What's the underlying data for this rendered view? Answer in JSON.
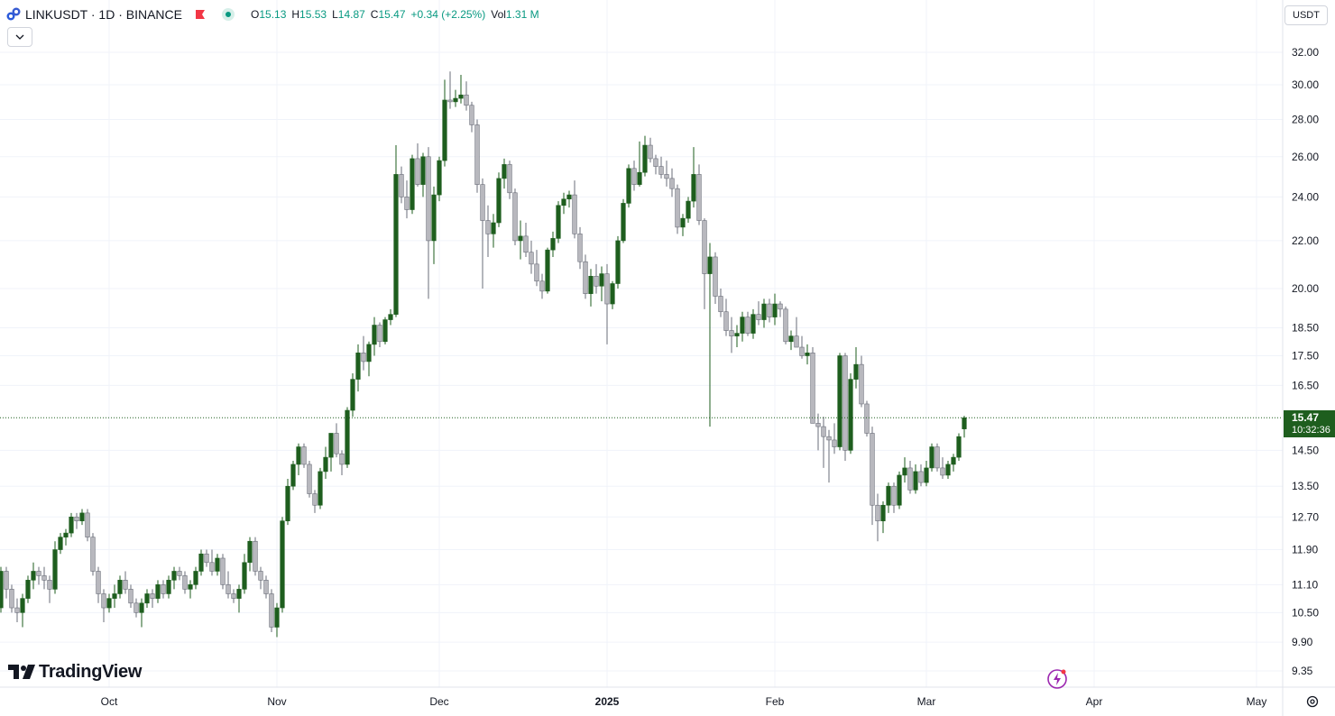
{
  "header": {
    "symbol": "LINKUSDT · 1D · BINANCE",
    "open_label": "O",
    "open": "15.13",
    "high_label": "H",
    "high": "15.53",
    "low_label": "L",
    "low": "14.87",
    "close_label": "C",
    "close": "15.47",
    "change": "+0.34 (+2.25%)",
    "vol_label": "Vol",
    "vol": "1.31 M",
    "up_color": "#1e5e1e",
    "down_color": "#b8b8be"
  },
  "currency": "USDT",
  "last_price": {
    "price": "15.47",
    "countdown": "10:32:36"
  },
  "brand": "TradingView",
  "chart_data": {
    "type": "candlestick",
    "scale": "log",
    "ylim": [
      9.1,
      33.5
    ],
    "y_ticks": [
      "32.00",
      "30.00",
      "28.00",
      "26.00",
      "24.00",
      "22.00",
      "20.00",
      "18.50",
      "17.50",
      "16.50",
      "14.50",
      "13.50",
      "12.70",
      "11.90",
      "11.10",
      "10.50",
      "9.90",
      "9.35"
    ],
    "x_ticks": [
      {
        "label": "Oct",
        "date": "2024-10-01"
      },
      {
        "label": "Nov",
        "date": "2024-11-01"
      },
      {
        "label": "Dec",
        "date": "2024-12-01"
      },
      {
        "label": "2025",
        "date": "2025-01-01"
      },
      {
        "label": "Feb",
        "date": "2025-02-01"
      },
      {
        "label": "Mar",
        "date": "2025-03-01"
      },
      {
        "label": "Apr",
        "date": "2025-04-01"
      },
      {
        "label": "May",
        "date": "2025-05-01"
      }
    ],
    "first_date": "2024-09-10",
    "last_price": 15.47,
    "ohlc": [
      [
        10.3,
        10.8,
        10.1,
        10.6
      ],
      [
        10.6,
        11.5,
        10.5,
        11.4
      ],
      [
        11.4,
        11.5,
        10.8,
        11.0
      ],
      [
        11.0,
        11.1,
        10.5,
        10.6
      ],
      [
        10.6,
        10.8,
        10.3,
        10.5
      ],
      [
        10.5,
        10.9,
        10.2,
        10.8
      ],
      [
        10.8,
        11.3,
        10.7,
        11.2
      ],
      [
        11.2,
        11.6,
        11.0,
        11.4
      ],
      [
        11.4,
        11.5,
        11.1,
        11.3
      ],
      [
        11.3,
        11.5,
        11.0,
        11.2
      ],
      [
        11.2,
        11.3,
        10.7,
        11.0
      ],
      [
        11.0,
        12.1,
        10.9,
        11.9
      ],
      [
        11.9,
        12.3,
        11.8,
        12.2
      ],
      [
        12.2,
        12.4,
        12.0,
        12.3
      ],
      [
        12.3,
        12.8,
        12.2,
        12.7
      ],
      [
        12.7,
        12.8,
        12.4,
        12.6
      ],
      [
        12.6,
        12.9,
        12.5,
        12.8
      ],
      [
        12.8,
        12.9,
        12.1,
        12.2
      ],
      [
        12.2,
        12.3,
        11.3,
        11.4
      ],
      [
        11.4,
        11.5,
        10.7,
        10.9
      ],
      [
        10.9,
        11.0,
        10.3,
        10.6
      ],
      [
        10.6,
        10.9,
        10.5,
        10.8
      ],
      [
        10.8,
        11.1,
        10.6,
        10.9
      ],
      [
        10.9,
        11.3,
        10.8,
        11.2
      ],
      [
        11.2,
        11.4,
        10.9,
        11.0
      ],
      [
        11.0,
        11.1,
        10.6,
        10.7
      ],
      [
        10.7,
        10.8,
        10.4,
        10.5
      ],
      [
        10.5,
        10.8,
        10.2,
        10.7
      ],
      [
        10.7,
        11.0,
        10.6,
        10.9
      ],
      [
        10.9,
        11.0,
        10.6,
        10.8
      ],
      [
        10.8,
        11.2,
        10.7,
        11.1
      ],
      [
        11.1,
        11.2,
        10.8,
        10.9
      ],
      [
        10.9,
        11.3,
        10.8,
        11.2
      ],
      [
        11.2,
        11.5,
        11.0,
        11.4
      ],
      [
        11.4,
        11.5,
        11.2,
        11.3
      ],
      [
        11.3,
        11.4,
        10.9,
        11.0
      ],
      [
        11.0,
        11.2,
        10.8,
        11.1
      ],
      [
        11.1,
        11.5,
        11.0,
        11.4
      ],
      [
        11.4,
        11.9,
        11.3,
        11.8
      ],
      [
        11.8,
        11.9,
        11.5,
        11.6
      ],
      [
        11.6,
        11.9,
        11.3,
        11.4
      ],
      [
        11.4,
        11.8,
        11.3,
        11.7
      ],
      [
        11.7,
        11.8,
        11.0,
        11.1
      ],
      [
        11.1,
        11.4,
        10.8,
        10.9
      ],
      [
        10.9,
        11.0,
        10.7,
        10.8
      ],
      [
        10.8,
        11.1,
        10.5,
        11.0
      ],
      [
        11.0,
        11.8,
        10.9,
        11.6
      ],
      [
        11.6,
        12.2,
        11.4,
        12.1
      ],
      [
        12.1,
        12.2,
        11.3,
        11.4
      ],
      [
        11.4,
        11.5,
        11.0,
        11.2
      ],
      [
        11.2,
        11.3,
        10.8,
        10.9
      ],
      [
        10.9,
        11.0,
        10.1,
        10.2
      ],
      [
        10.2,
        10.7,
        10.0,
        10.6
      ],
      [
        10.6,
        12.7,
        10.5,
        12.6
      ],
      [
        12.6,
        13.7,
        12.5,
        13.5
      ],
      [
        13.5,
        14.2,
        13.4,
        14.1
      ],
      [
        14.1,
        14.7,
        13.8,
        14.6
      ],
      [
        14.6,
        14.7,
        14.0,
        14.1
      ],
      [
        14.1,
        14.2,
        13.2,
        13.3
      ],
      [
        13.3,
        13.4,
        12.8,
        13.0
      ],
      [
        13.0,
        14.0,
        12.9,
        13.9
      ],
      [
        13.9,
        14.6,
        13.7,
        14.3
      ],
      [
        14.3,
        14.8,
        13.9,
        15.0
      ],
      [
        15.0,
        15.3,
        14.3,
        14.4
      ],
      [
        14.4,
        14.5,
        13.8,
        14.1
      ],
      [
        14.1,
        15.8,
        14.0,
        15.7
      ],
      [
        15.7,
        16.9,
        15.5,
        16.7
      ],
      [
        16.7,
        17.9,
        16.3,
        17.6
      ],
      [
        17.6,
        18.2,
        17.0,
        17.3
      ],
      [
        17.3,
        18.0,
        16.8,
        17.9
      ],
      [
        17.9,
        18.9,
        17.5,
        18.6
      ],
      [
        18.6,
        18.7,
        17.8,
        18.0
      ],
      [
        18.0,
        18.9,
        17.9,
        18.8
      ],
      [
        18.8,
        19.2,
        18.6,
        19.0
      ],
      [
        19.0,
        26.6,
        18.9,
        25.1
      ],
      [
        25.1,
        25.5,
        23.7,
        24.0
      ],
      [
        24.0,
        24.8,
        23.0,
        23.4
      ],
      [
        23.4,
        26.1,
        23.2,
        25.9
      ],
      [
        25.9,
        26.7,
        24.5,
        24.6
      ],
      [
        24.6,
        26.2,
        24.0,
        26.0
      ],
      [
        26.0,
        26.5,
        19.6,
        22.0
      ],
      [
        22.0,
        24.5,
        21.0,
        24.1
      ],
      [
        24.1,
        26.0,
        23.8,
        25.8
      ],
      [
        25.8,
        30.3,
        25.5,
        29.1
      ],
      [
        29.1,
        30.8,
        28.6,
        29.0
      ],
      [
        29.0,
        29.7,
        28.7,
        29.2
      ],
      [
        29.2,
        30.6,
        28.9,
        29.4
      ],
      [
        29.4,
        30.2,
        28.5,
        28.8
      ],
      [
        28.8,
        29.0,
        27.3,
        27.7
      ],
      [
        27.7,
        28.0,
        24.2,
        24.6
      ],
      [
        24.6,
        24.9,
        20.0,
        22.9
      ],
      [
        22.9,
        23.6,
        21.3,
        22.3
      ],
      [
        22.3,
        23.2,
        21.7,
        22.8
      ],
      [
        22.8,
        25.2,
        22.6,
        24.9
      ],
      [
        24.9,
        25.9,
        24.4,
        25.6
      ],
      [
        25.6,
        25.8,
        23.9,
        24.2
      ],
      [
        24.2,
        24.4,
        21.8,
        22.0
      ],
      [
        22.0,
        22.9,
        21.2,
        22.2
      ],
      [
        22.2,
        22.8,
        21.3,
        21.5
      ],
      [
        21.5,
        22.0,
        20.6,
        21.0
      ],
      [
        21.0,
        21.6,
        20.1,
        20.3
      ],
      [
        20.3,
        20.6,
        19.6,
        19.9
      ],
      [
        19.9,
        21.7,
        19.8,
        21.6
      ],
      [
        21.6,
        22.4,
        21.3,
        22.1
      ],
      [
        22.1,
        23.8,
        21.9,
        23.6
      ],
      [
        23.6,
        24.2,
        23.2,
        23.9
      ],
      [
        23.9,
        24.3,
        23.5,
        24.1
      ],
      [
        24.1,
        24.8,
        22.1,
        22.3
      ],
      [
        22.3,
        22.6,
        20.8,
        21.1
      ],
      [
        21.1,
        21.4,
        19.6,
        19.8
      ],
      [
        19.8,
        20.8,
        19.3,
        20.5
      ],
      [
        20.5,
        21.0,
        19.8,
        20.1
      ],
      [
        20.1,
        20.9,
        19.5,
        20.6
      ],
      [
        20.6,
        21.0,
        17.9,
        19.4
      ],
      [
        19.4,
        20.3,
        19.2,
        20.2
      ],
      [
        20.2,
        22.2,
        20.0,
        22.0
      ],
      [
        22.0,
        23.9,
        21.9,
        23.7
      ],
      [
        23.7,
        25.6,
        23.5,
        25.4
      ],
      [
        25.4,
        25.8,
        24.3,
        24.6
      ],
      [
        24.6,
        26.8,
        24.5,
        25.2
      ],
      [
        25.2,
        27.1,
        25.0,
        26.6
      ],
      [
        26.6,
        27.0,
        25.7,
        25.9
      ],
      [
        25.9,
        26.1,
        25.1,
        25.5
      ],
      [
        25.5,
        26.0,
        24.9,
        25.1
      ],
      [
        25.1,
        25.8,
        24.5,
        24.9
      ],
      [
        24.9,
        25.4,
        24.0,
        24.4
      ],
      [
        24.4,
        24.6,
        22.3,
        22.6
      ],
      [
        22.6,
        23.2,
        22.2,
        23.0
      ],
      [
        23.0,
        24.0,
        22.8,
        23.8
      ],
      [
        23.8,
        26.5,
        23.5,
        25.1
      ],
      [
        25.1,
        25.6,
        22.7,
        22.9
      ],
      [
        22.9,
        23.0,
        19.2,
        20.6
      ],
      [
        20.6,
        21.9,
        15.2,
        21.3
      ],
      [
        21.3,
        21.5,
        19.4,
        19.7
      ],
      [
        19.7,
        20.0,
        18.9,
        19.1
      ],
      [
        19.1,
        19.6,
        18.2,
        18.4
      ],
      [
        18.4,
        18.9,
        17.6,
        18.2
      ],
      [
        18.2,
        18.6,
        17.8,
        18.3
      ],
      [
        18.3,
        19.1,
        18.0,
        18.9
      ],
      [
        18.9,
        19.1,
        18.2,
        18.3
      ],
      [
        18.3,
        19.2,
        18.1,
        19.0
      ],
      [
        19.0,
        19.5,
        18.6,
        18.8
      ],
      [
        18.8,
        19.6,
        18.5,
        19.4
      ],
      [
        19.4,
        19.6,
        18.7,
        18.9
      ],
      [
        18.9,
        19.8,
        18.6,
        19.4
      ],
      [
        19.4,
        19.5,
        18.9,
        19.2
      ],
      [
        19.2,
        19.3,
        17.9,
        18.0
      ],
      [
        18.0,
        18.4,
        17.7,
        18.2
      ],
      [
        18.2,
        18.9,
        17.9,
        17.8
      ],
      [
        17.8,
        18.2,
        17.4,
        17.5
      ],
      [
        17.5,
        17.9,
        17.2,
        17.6
      ],
      [
        17.6,
        17.8,
        15.3,
        15.3
      ],
      [
        15.3,
        15.6,
        14.5,
        15.2
      ],
      [
        15.2,
        15.5,
        14.0,
        14.9
      ],
      [
        14.9,
        15.1,
        13.6,
        14.8
      ],
      [
        14.8,
        15.3,
        14.4,
        14.6
      ],
      [
        14.6,
        17.6,
        14.5,
        17.5
      ],
      [
        17.5,
        17.6,
        14.2,
        14.5
      ],
      [
        14.5,
        16.9,
        14.4,
        16.7
      ],
      [
        16.7,
        17.8,
        16.4,
        17.2
      ],
      [
        17.2,
        17.5,
        15.8,
        15.9
      ],
      [
        15.9,
        16.0,
        14.9,
        15.0
      ],
      [
        15.0,
        15.2,
        12.5,
        13.0
      ],
      [
        13.0,
        13.3,
        12.1,
        12.6
      ],
      [
        12.6,
        13.1,
        12.3,
        13.0
      ],
      [
        13.0,
        13.6,
        12.8,
        13.5
      ],
      [
        13.5,
        13.6,
        12.8,
        13.0
      ],
      [
        13.0,
        13.9,
        12.9,
        13.8
      ],
      [
        13.8,
        14.3,
        13.6,
        14.0
      ],
      [
        14.0,
        14.2,
        13.3,
        13.4
      ],
      [
        13.4,
        14.1,
        13.3,
        13.9
      ],
      [
        13.9,
        14.1,
        13.5,
        13.6
      ],
      [
        13.6,
        14.2,
        13.5,
        14.0
      ],
      [
        14.0,
        14.7,
        13.9,
        14.6
      ],
      [
        14.6,
        14.7,
        13.9,
        14.0
      ],
      [
        14.0,
        14.3,
        13.7,
        13.8
      ],
      [
        13.8,
        14.2,
        13.7,
        14.1
      ],
      [
        14.1,
        14.4,
        13.9,
        14.3
      ],
      [
        14.3,
        15.0,
        14.2,
        14.9
      ],
      [
        15.13,
        15.53,
        14.87,
        15.47
      ]
    ]
  }
}
